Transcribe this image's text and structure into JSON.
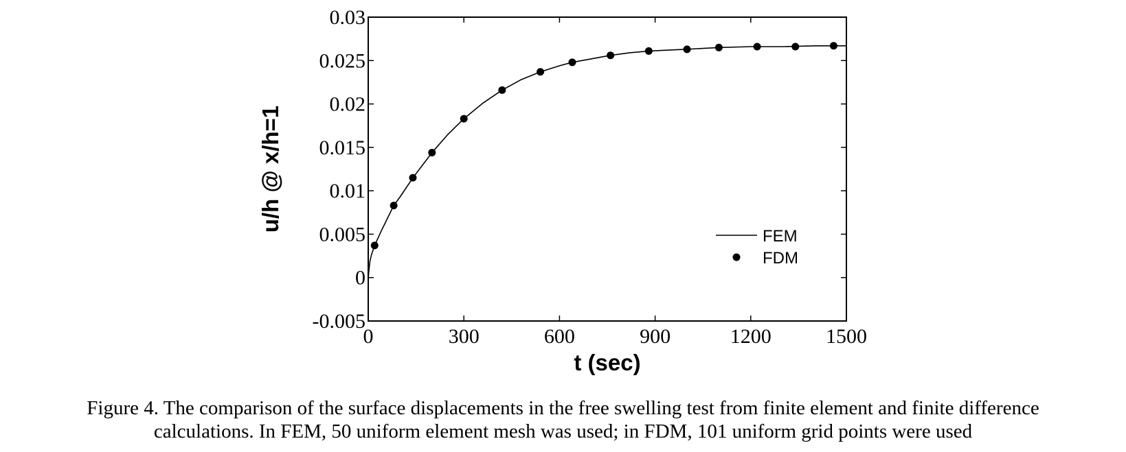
{
  "chart_data": {
    "type": "line",
    "title": "",
    "xlabel": "t (sec)",
    "ylabel": "u/h @ x/h=1",
    "xlim": [
      0,
      1500
    ],
    "ylim": [
      -0.005,
      0.03
    ],
    "xticks": [
      "0",
      "300",
      "600",
      "900",
      "1200",
      "1500"
    ],
    "yticks": [
      "-0.005",
      "0",
      "0.005",
      "0.01",
      "0.015",
      "0.02",
      "0.025",
      "0.03"
    ],
    "grid": false,
    "legend_position": "lower-right",
    "series": [
      {
        "name": "FEM",
        "style": "line",
        "color": "#000000",
        "x": [
          0,
          5,
          10,
          20,
          40,
          60,
          80,
          100,
          140,
          200,
          250,
          300,
          360,
          420,
          480,
          540,
          600,
          640,
          700,
          760,
          820,
          880,
          940,
          1000,
          1100,
          1200,
          1300,
          1400,
          1500
        ],
        "y": [
          0,
          0.0018,
          0.0026,
          0.0037,
          0.0053,
          0.0068,
          0.0083,
          0.0093,
          0.0115,
          0.0144,
          0.0165,
          0.0183,
          0.0201,
          0.0216,
          0.0228,
          0.0237,
          0.0244,
          0.0248,
          0.0252,
          0.0256,
          0.0259,
          0.0261,
          0.0262,
          0.0263,
          0.0265,
          0.0266,
          0.0266,
          0.0267,
          0.0267
        ]
      },
      {
        "name": "FDM",
        "style": "markers",
        "color": "#000000",
        "x": [
          20,
          80,
          140,
          200,
          300,
          420,
          540,
          640,
          760,
          880,
          1000,
          1100,
          1220,
          1340,
          1460
        ],
        "y": [
          0.0037,
          0.0083,
          0.0115,
          0.0144,
          0.0183,
          0.0216,
          0.0237,
          0.0248,
          0.0256,
          0.0261,
          0.0263,
          0.0265,
          0.0266,
          0.0266,
          0.0267
        ]
      }
    ]
  },
  "caption": {
    "line1": "Figure 4.  The comparison of the surface displacements in the free swelling test from finite element and finite difference",
    "line2": "calculations. In FEM, 50 uniform element mesh was used; in FDM, 101 uniform grid points were used"
  }
}
